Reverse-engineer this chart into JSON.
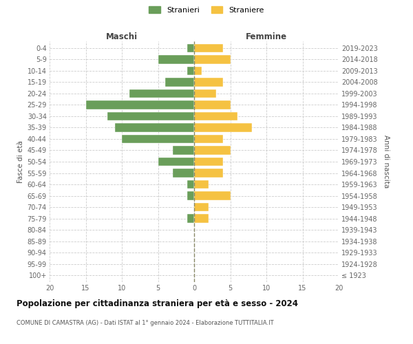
{
  "age_groups": [
    "100+",
    "95-99",
    "90-94",
    "85-89",
    "80-84",
    "75-79",
    "70-74",
    "65-69",
    "60-64",
    "55-59",
    "50-54",
    "45-49",
    "40-44",
    "35-39",
    "30-34",
    "25-29",
    "20-24",
    "15-19",
    "10-14",
    "5-9",
    "0-4"
  ],
  "birth_years": [
    "≤ 1923",
    "1924-1928",
    "1929-1933",
    "1934-1938",
    "1939-1943",
    "1944-1948",
    "1949-1953",
    "1954-1958",
    "1959-1963",
    "1964-1968",
    "1969-1973",
    "1974-1978",
    "1979-1983",
    "1984-1988",
    "1989-1993",
    "1994-1998",
    "1999-2003",
    "2004-2008",
    "2009-2013",
    "2014-2018",
    "2019-2023"
  ],
  "maschi": [
    0,
    0,
    0,
    0,
    0,
    1,
    0,
    1,
    1,
    3,
    5,
    3,
    10,
    11,
    12,
    15,
    9,
    4,
    1,
    5,
    1
  ],
  "femmine": [
    0,
    0,
    0,
    0,
    0,
    2,
    2,
    5,
    2,
    4,
    4,
    5,
    4,
    8,
    6,
    5,
    3,
    4,
    1,
    5,
    4
  ],
  "maschi_color": "#6a9e5a",
  "femmine_color": "#f5c242",
  "grid_color": "#cccccc",
  "title": "Popolazione per cittadinanza straniera per età e sesso - 2024",
  "subtitle": "COMUNE DI CAMASTRA (AG) - Dati ISTAT al 1° gennaio 2024 - Elaborazione TUTTITALIA.IT",
  "label_maschi_top": "Maschi",
  "label_femmine_top": "Femmine",
  "ylabel_left": "Fasce di età",
  "ylabel_right": "Anni di nascita",
  "legend_maschi": "Stranieri",
  "legend_femmine": "Straniere",
  "xlim": 20,
  "bar_height": 0.75
}
